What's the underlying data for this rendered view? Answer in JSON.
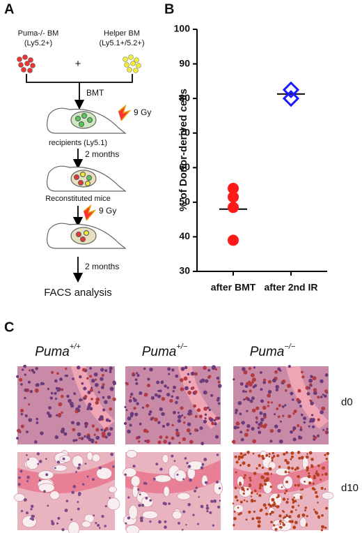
{
  "panel_a": {
    "label": "A",
    "donor": [
      "Puma-/- BM",
      "(Ly5.2+)"
    ],
    "helper": [
      "Helper BM",
      "(Ly5.1+/5.2+)"
    ],
    "plus": "+",
    "step1": "BMT",
    "dose1": "9 Gy",
    "recipients": "recipients (Ly5.1)",
    "step2": "2 months",
    "reconstituted": "Reconstituted mice",
    "dose2": "9 Gy",
    "step3": "2 months",
    "final": "FACS analysis"
  },
  "chart_data": {
    "type": "dot",
    "label": "B",
    "ylabel": "% of Donor-derived cells",
    "categories": [
      "after BMT",
      "after 2nd IR"
    ],
    "groups": [
      {
        "color": "#ff1a1a",
        "marker": "circle",
        "values": [
          54,
          51.5,
          48.5,
          39
        ]
      },
      {
        "color": "#1a1aff",
        "marker": "diamond",
        "values": [
          82.5,
          80
        ]
      }
    ],
    "means": [
      48,
      81.3
    ],
    "ylim": [
      30,
      100
    ],
    "yticks": [
      30,
      40,
      50,
      60,
      70,
      80,
      90,
      100
    ]
  },
  "panel_c": {
    "label": "C",
    "columns": [
      {
        "italic": "Puma",
        "sup": "+/+"
      },
      {
        "italic": "Puma",
        "sup": "+/−"
      },
      {
        "italic": "Puma",
        "sup": "−/−"
      }
    ],
    "rows": [
      "d0",
      "d10"
    ]
  }
}
